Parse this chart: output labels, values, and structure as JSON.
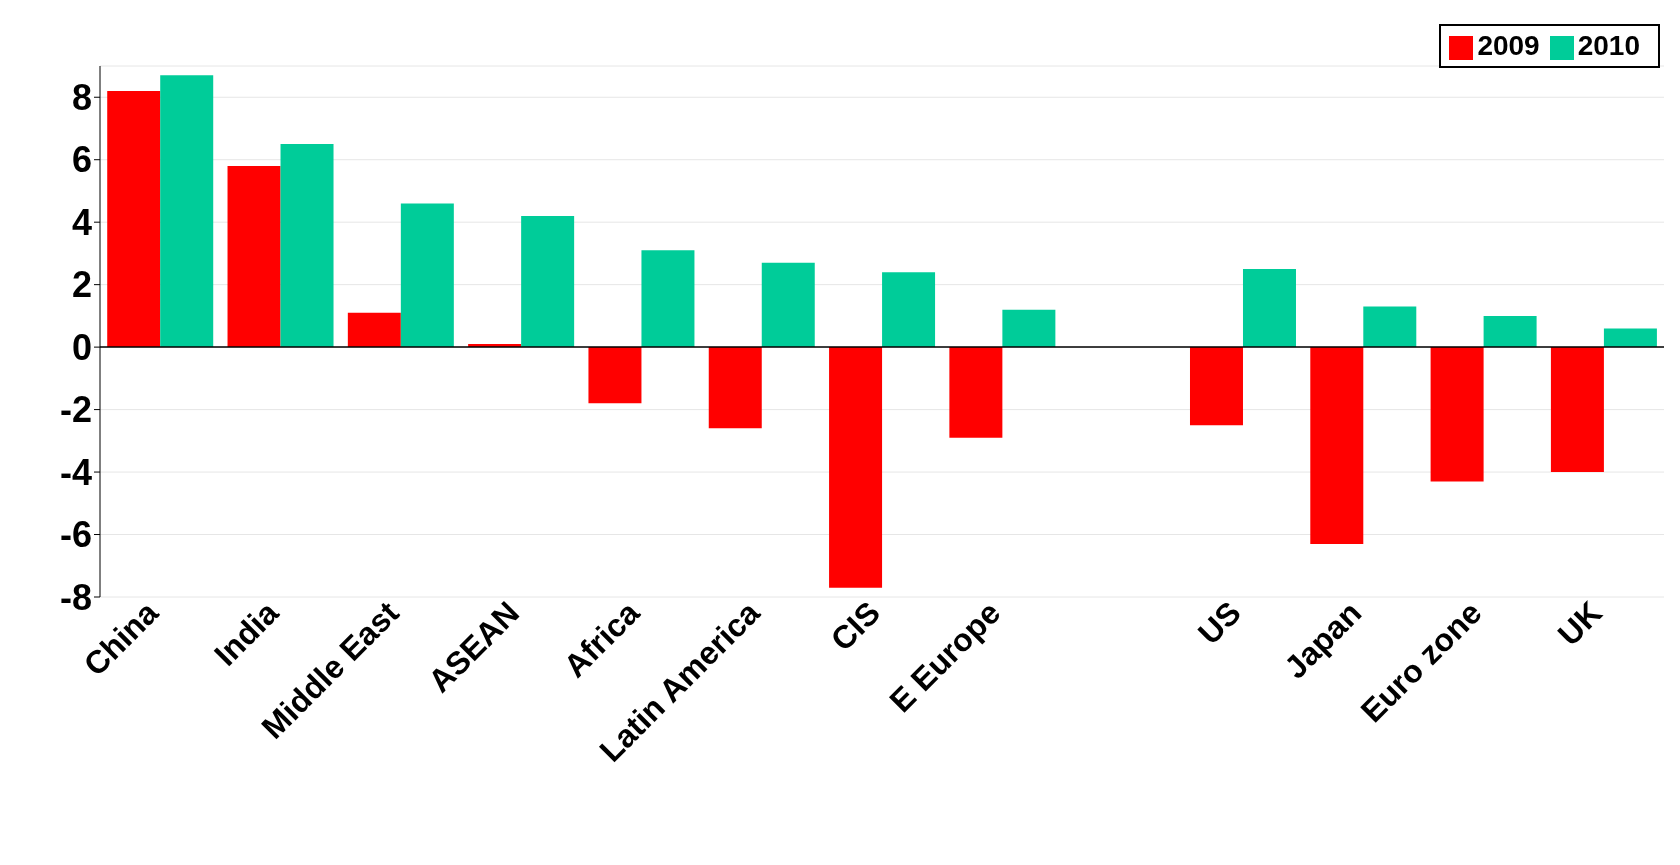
{
  "chart_data": {
    "type": "bar",
    "categories": [
      "China",
      "India",
      "Middle East",
      "ASEAN",
      "Africa",
      "Latin America",
      "CIS",
      "E Europe",
      null,
      "US",
      "Japan",
      "Euro zone",
      "UK"
    ],
    "series": [
      {
        "name": "2009",
        "color": "#ff0000",
        "values": [
          8.2,
          5.8,
          1.1,
          0.1,
          -1.8,
          -2.6,
          -7.7,
          -2.9,
          null,
          -2.5,
          -6.3,
          -4.3,
          -4.0
        ]
      },
      {
        "name": "2010",
        "color": "#00cc99",
        "values": [
          8.7,
          6.5,
          4.6,
          4.2,
          3.1,
          2.7,
          2.4,
          1.2,
          null,
          2.5,
          1.3,
          1.0,
          0.6
        ]
      }
    ],
    "ylim": [
      -8,
      9
    ],
    "yticks": [
      -8,
      -6,
      -4,
      -2,
      0,
      2,
      4,
      6,
      8
    ],
    "grid": "y",
    "legend": "top right"
  }
}
